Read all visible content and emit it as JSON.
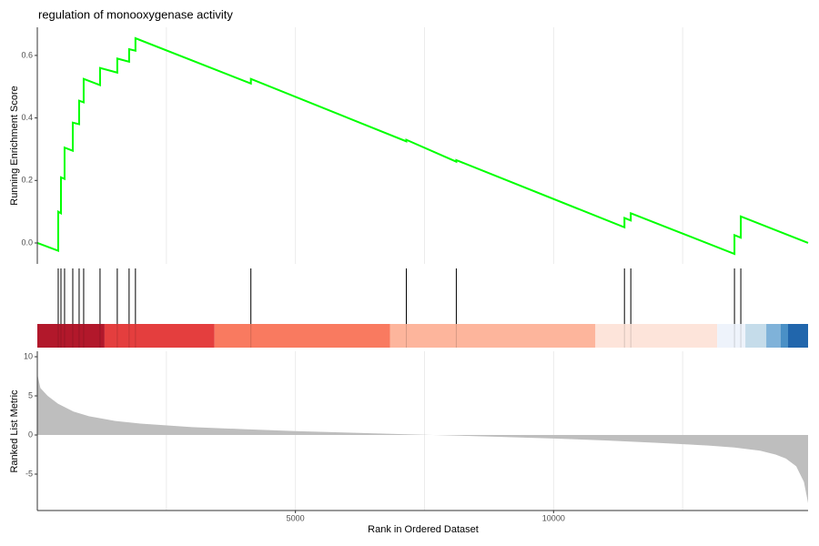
{
  "chart_data": [
    {
      "type": "line",
      "title": "regulation of monooxygenase activity",
      "ylabel": "Running Enrichment Score",
      "x": [
        0,
        405,
        405,
        458,
        458,
        528,
        528,
        687,
        687,
        810,
        810,
        898,
        898,
        1215,
        1215,
        1549,
        1549,
        1778,
        1778,
        1901,
        1901,
        4137,
        4137,
        7148,
        7148,
        8116,
        8116,
        11373,
        11373,
        11496,
        11496,
        13504,
        13504,
        13627,
        13627,
        14930
      ],
      "values": [
        0,
        -0.025,
        0.1,
        0.095,
        0.21,
        0.205,
        0.305,
        0.295,
        0.385,
        0.38,
        0.455,
        0.45,
        0.525,
        0.505,
        0.56,
        0.545,
        0.59,
        0.58,
        0.62,
        0.615,
        0.655,
        0.51,
        0.525,
        0.325,
        0.33,
        0.26,
        0.265,
        0.05,
        0.08,
        0.072,
        0.095,
        -0.035,
        0.025,
        0.017,
        0.085,
        0
      ],
      "color": "#00ff00",
      "xlim": [
        0,
        14930
      ],
      "ylim": [
        -0.067,
        0.69
      ],
      "yticks": [
        {
          "value": 0,
          "label": "0.0"
        },
        0.2,
        0.4,
        0.6
      ],
      "xgrid": [
        2500,
        5000,
        7500,
        10000,
        12500
      ]
    },
    {
      "type": "rug",
      "x": [
        405,
        458,
        528,
        687,
        810,
        898,
        1215,
        1549,
        1778,
        1901,
        4137,
        7148,
        8116,
        11373,
        11496,
        13504,
        13627
      ],
      "xlim": [
        0,
        14930
      ],
      "bands": [
        {
          "from": 0,
          "to": 1303,
          "color": "#b2182b"
        },
        {
          "from": 1303,
          "to": 3433,
          "color": "#e43e3e"
        },
        {
          "from": 3433,
          "to": 6831,
          "color": "#f97a60"
        },
        {
          "from": 6831,
          "to": 10810,
          "color": "#fdb59c"
        },
        {
          "from": 10810,
          "to": 13169,
          "color": "#fde4da"
        },
        {
          "from": 13169,
          "to": 13715,
          "color": "#eef3fb"
        },
        {
          "from": 13715,
          "to": 14120,
          "color": "#c5dcea"
        },
        {
          "from": 14120,
          "to": 14401,
          "color": "#7fb2d9"
        },
        {
          "from": 14401,
          "to": 14542,
          "color": "#4a90c6"
        },
        {
          "from": 14542,
          "to": 14930,
          "color": "#2166ac"
        }
      ]
    },
    {
      "type": "area",
      "xlabel": "Rank in Ordered Dataset",
      "ylabel": "Ranked List Metric",
      "x": [
        0,
        60,
        200,
        400,
        700,
        1000,
        1500,
        2000,
        3000,
        4000,
        5000,
        6000,
        7000,
        8000,
        9000,
        10000,
        11000,
        12000,
        13000,
        13500,
        14000,
        14300,
        14500,
        14700,
        14850,
        14930
      ],
      "values": [
        7.8,
        6,
        5,
        4,
        3,
        2.4,
        1.8,
        1.45,
        1.0,
        0.75,
        0.5,
        0.3,
        0.12,
        -0.05,
        -0.25,
        -0.45,
        -0.7,
        -1.0,
        -1.35,
        -1.6,
        -2.0,
        -2.5,
        -3,
        -4,
        -6,
        -8.7
      ],
      "color": "#bebebe",
      "xlim": [
        0,
        14930
      ],
      "ylim": [
        -9.65,
        10.7
      ],
      "yticks": [
        -5,
        0,
        5,
        10
      ],
      "xticks": [
        5000,
        10000
      ],
      "xgrid": [
        2500,
        5000,
        7500,
        10000,
        12500
      ]
    }
  ]
}
